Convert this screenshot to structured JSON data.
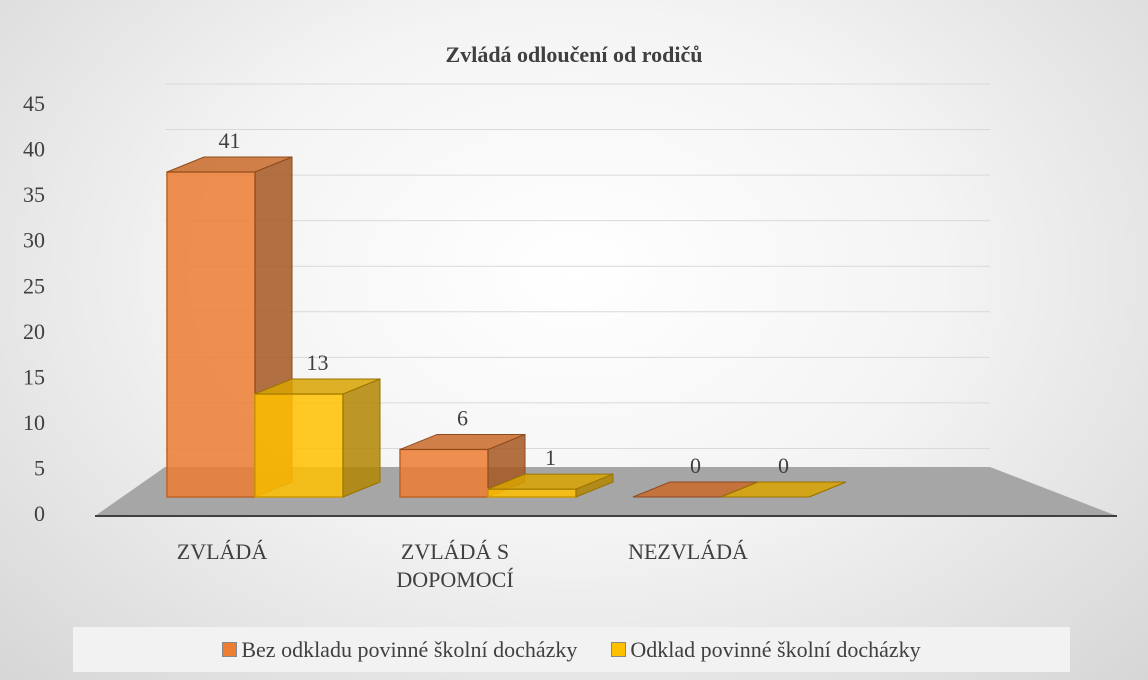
{
  "chart_data": {
    "type": "bar3d",
    "title": "Zvládá odloučení od rodičů",
    "categories": [
      "ZVLÁDÁ",
      "ZVLÁDÁ S DOPOMOCÍ",
      "NEZVLÁDÁ"
    ],
    "series": [
      {
        "name": "Bez odkladu povinné školní docházky",
        "color": "#ed7d31",
        "values": [
          41,
          6,
          0
        ]
      },
      {
        "name": "Odklad povinné školní docházky",
        "color": "#ffc000",
        "values": [
          13,
          1,
          0
        ]
      }
    ],
    "ylim": [
      0,
      45
    ],
    "yticks": [
      0,
      5,
      10,
      15,
      20,
      25,
      30,
      35,
      40,
      45
    ],
    "grid": true,
    "legend": "bottom"
  }
}
